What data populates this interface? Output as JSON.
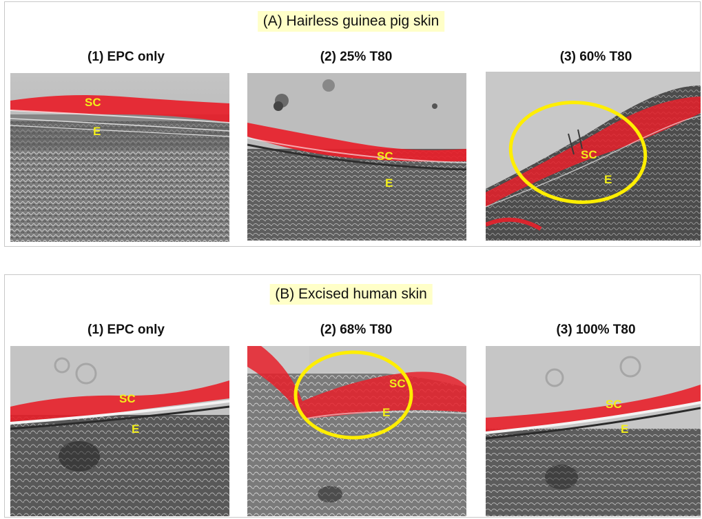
{
  "section_a": {
    "title": "(A) Hairless guinea pig skin",
    "images": [
      {
        "label": "(1) EPC only",
        "sc": "SC",
        "e": "E",
        "circled": false
      },
      {
        "label": "(2) 25% T80",
        "sc": "SC",
        "e": "E",
        "circled": false
      },
      {
        "label": "(3) 60% T80",
        "sc": "SC",
        "e": "E",
        "circled": true
      }
    ]
  },
  "section_b": {
    "title": "(B) Excised human skin",
    "images": [
      {
        "label": "(1) EPC only",
        "sc": "SC",
        "e": "E",
        "circled": false
      },
      {
        "label": "(2) 68% T80",
        "sc": "SC",
        "e": "E",
        "circled": true
      },
      {
        "label": "(3) 100% T80",
        "sc": "SC",
        "e": "E",
        "circled": false
      }
    ]
  },
  "colors": {
    "stain_red": "#e8202a",
    "label_yellow": "#f2ee1a",
    "circle_yellow": "#ffee00",
    "title_highlight": "#ffffc8"
  }
}
